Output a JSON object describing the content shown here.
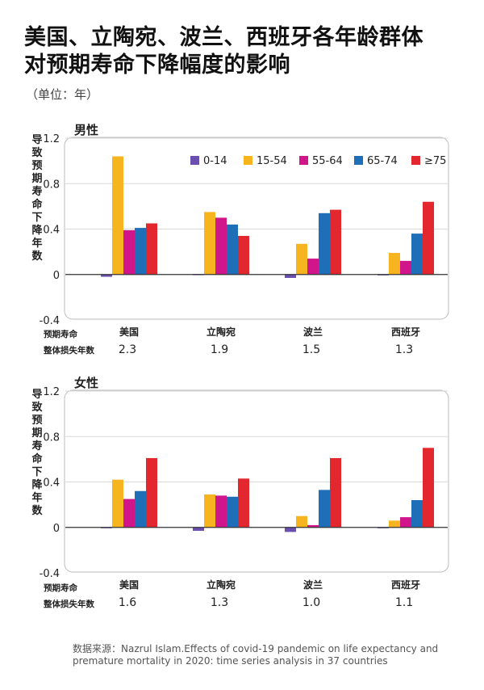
{
  "title_line1": "美国、立陶宛、波兰、西班牙各年龄群体",
  "title_line2": "对预期寿命下降幅度的影响",
  "unit": "（单位：年）",
  "ylabel_chars": [
    "导",
    "致",
    "预",
    "期",
    "寿",
    "命",
    "下",
    "降",
    "年",
    "数"
  ],
  "row_label1": "预期寿命",
  "row_label2": "整体损失年数",
  "source_line1": "数据来源：Nazrul Islam.Effects of covid-19 pandemic on life expectancy and",
  "source_line2": "premature mortality in 2020: time series analysis in 37 countries",
  "colors": {
    "0-14": "#6a4fb0",
    "15-54": "#f6b51f",
    "55-64": "#d1168c",
    "65-74": "#1e6fb8",
    "≥75": "#e2282e",
    "grid": "#d9d9d9",
    "zero": "#333333",
    "frame": "#bbbbbb"
  },
  "chart_data": [
    {
      "type": "bar",
      "title": "男性",
      "categories": [
        "美国",
        "立陶宛",
        "波兰",
        "西班牙"
      ],
      "losses": [
        "2.3",
        "1.9",
        "1.5",
        "1.3"
      ],
      "ylim": [
        -0.4,
        1.2
      ],
      "yticks": [
        -0.4,
        0,
        0.4,
        0.8,
        1.2
      ],
      "ytick_labels": [
        "-0.4",
        "0",
        "0.4",
        "0.8",
        "1.2"
      ],
      "legend": "top-right",
      "series": [
        {
          "name": "0-14",
          "values": [
            -0.02,
            0.005,
            -0.03,
            0.003
          ]
        },
        {
          "name": "15-54",
          "values": [
            1.04,
            0.55,
            0.27,
            0.19
          ]
        },
        {
          "name": "55-64",
          "values": [
            0.39,
            0.5,
            0.14,
            0.12
          ]
        },
        {
          "name": "65-74",
          "values": [
            0.41,
            0.44,
            0.54,
            0.36
          ]
        },
        {
          "name": "≥75",
          "values": [
            0.45,
            0.34,
            0.57,
            0.64
          ]
        }
      ]
    },
    {
      "type": "bar",
      "title": "女性",
      "categories": [
        "美国",
        "立陶宛",
        "波兰",
        "西班牙"
      ],
      "losses": [
        "1.6",
        "1.3",
        "1.0",
        "1.1"
      ],
      "ylim": [
        -0.4,
        1.2
      ],
      "yticks": [
        -0.4,
        0,
        0.4,
        0.8,
        1.2
      ],
      "ytick_labels": [
        "-0.4",
        "0",
        "0.4",
        "0.8",
        "1.2"
      ],
      "series": [
        {
          "name": "0-14",
          "values": [
            0.003,
            -0.03,
            -0.04,
            0.003
          ]
        },
        {
          "name": "15-54",
          "values": [
            0.42,
            0.29,
            0.1,
            0.06
          ]
        },
        {
          "name": "55-64",
          "values": [
            0.25,
            0.28,
            0.02,
            0.09
          ]
        },
        {
          "name": "65-74",
          "values": [
            0.32,
            0.27,
            0.33,
            0.24
          ]
        },
        {
          "name": "≥75",
          "values": [
            0.61,
            0.43,
            0.61,
            0.7
          ]
        }
      ]
    }
  ]
}
